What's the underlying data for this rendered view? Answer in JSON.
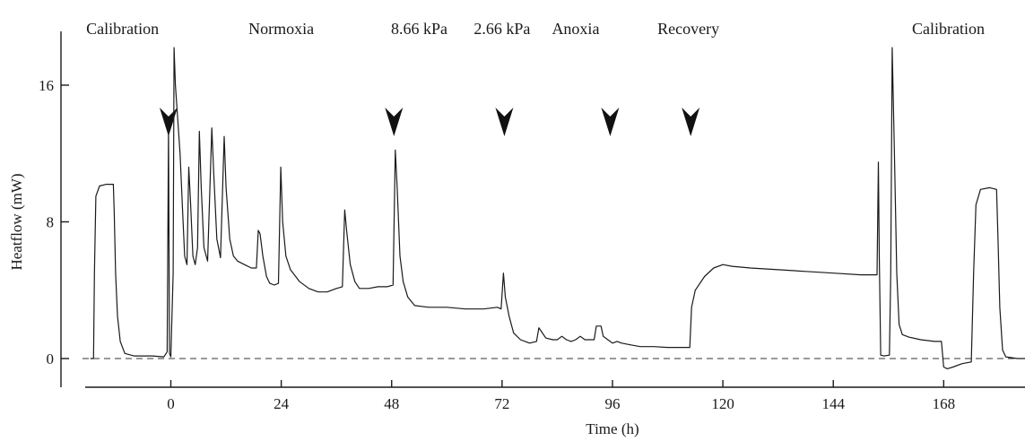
{
  "chart_data": {
    "type": "line",
    "title": "",
    "xlabel": "Time (h)",
    "ylabel": "Heatflow (mW)",
    "xlim": [
      -21,
      181
    ],
    "ylim": [
      -0.8,
      19.5
    ],
    "x_ticks": [
      0,
      24,
      48,
      72,
      96,
      120,
      144,
      168
    ],
    "y_ticks": [
      0,
      8,
      16
    ],
    "baseline_y": 0,
    "grid": false,
    "legend": "none",
    "phase_labels": [
      {
        "text": "Calibration",
        "x": -10.5
      },
      {
        "text": "Normoxia",
        "x": 24
      },
      {
        "text": "8.66 kPa",
        "x": 54
      },
      {
        "text": "2.66 kPa",
        "x": 72
      },
      {
        "text": "Anoxia",
        "x": 88
      },
      {
        "text": "Recovery",
        "x": 112.5
      },
      {
        "text": "Calibration",
        "x": 169
      }
    ],
    "arrow_markers_x": [
      -0.5,
      48.5,
      72.5,
      95.5,
      113
    ],
    "series": [
      {
        "values": [
          [
            -17.5,
            0
          ],
          [
            -16.8,
            0
          ],
          [
            -16.6,
            5
          ],
          [
            -16.3,
            9.5
          ],
          [
            -15.5,
            10.1
          ],
          [
            -14,
            10.2
          ],
          [
            -12.5,
            10.2
          ],
          [
            -12.3,
            8.5
          ],
          [
            -12,
            5
          ],
          [
            -11.6,
            2.5
          ],
          [
            -11,
            1
          ],
          [
            -10,
            0.3
          ],
          [
            -8,
            0.15
          ],
          [
            -4,
            0.15
          ],
          [
            -1.5,
            0.1
          ],
          [
            -0.8,
            0.4
          ],
          [
            -0.5,
            13.5
          ],
          [
            -0.3,
            0.3
          ],
          [
            0,
            0.1
          ],
          [
            0.5,
            5
          ],
          [
            0.7,
            18.2
          ],
          [
            1,
            16
          ],
          [
            1.5,
            14
          ],
          [
            2,
            12
          ],
          [
            2.5,
            9
          ],
          [
            3,
            6
          ],
          [
            3.5,
            5.5
          ],
          [
            3.9,
            11.2
          ],
          [
            4.3,
            9
          ],
          [
            4.8,
            6
          ],
          [
            5.3,
            5.5
          ],
          [
            5.8,
            6.5
          ],
          [
            6.2,
            13.3
          ],
          [
            6.6,
            10
          ],
          [
            7.2,
            6.5
          ],
          [
            8,
            5.7
          ],
          [
            8.9,
            13.5
          ],
          [
            9.3,
            11
          ],
          [
            10,
            7
          ],
          [
            10.8,
            5.9
          ],
          [
            11.6,
            13
          ],
          [
            12,
            10
          ],
          [
            12.8,
            7
          ],
          [
            13.6,
            6
          ],
          [
            14.5,
            5.7
          ],
          [
            16,
            5.5
          ],
          [
            17.5,
            5.3
          ],
          [
            18.6,
            5.3
          ],
          [
            19,
            7.5
          ],
          [
            19.4,
            7.3
          ],
          [
            20,
            6
          ],
          [
            20.8,
            4.8
          ],
          [
            21.5,
            4.4
          ],
          [
            22.5,
            4.3
          ],
          [
            23.4,
            4.4
          ],
          [
            23.9,
            11.2
          ],
          [
            24.3,
            8
          ],
          [
            25,
            6
          ],
          [
            26,
            5.2
          ],
          [
            28,
            4.5
          ],
          [
            30,
            4.1
          ],
          [
            32,
            3.9
          ],
          [
            34,
            3.9
          ],
          [
            36,
            4.1
          ],
          [
            37.3,
            4.2
          ],
          [
            37.8,
            8.7
          ],
          [
            38.2,
            7.5
          ],
          [
            39,
            5.5
          ],
          [
            40,
            4.5
          ],
          [
            41,
            4.1
          ],
          [
            43,
            4.1
          ],
          [
            45,
            4.2
          ],
          [
            47,
            4.2
          ],
          [
            48.3,
            4.3
          ],
          [
            48.8,
            12.2
          ],
          [
            49.2,
            10
          ],
          [
            49.8,
            6
          ],
          [
            50.5,
            4.5
          ],
          [
            51.5,
            3.6
          ],
          [
            53,
            3.1
          ],
          [
            56,
            3
          ],
          [
            60,
            3
          ],
          [
            64,
            2.9
          ],
          [
            68,
            2.9
          ],
          [
            71,
            3
          ],
          [
            71.8,
            2.9
          ],
          [
            72.3,
            5
          ],
          [
            72.7,
            3.6
          ],
          [
            73.5,
            2.5
          ],
          [
            74.5,
            1.5
          ],
          [
            76,
            1.1
          ],
          [
            78,
            0.9
          ],
          [
            79.5,
            1
          ],
          [
            80,
            1.8
          ],
          [
            80.5,
            1.6
          ],
          [
            81.5,
            1.2
          ],
          [
            83,
            1.1
          ],
          [
            84,
            1.1
          ],
          [
            85,
            1.3
          ],
          [
            86,
            1.1
          ],
          [
            87,
            1
          ],
          [
            88,
            1.1
          ],
          [
            89,
            1.3
          ],
          [
            90,
            1.1
          ],
          [
            92,
            1.1
          ],
          [
            92.5,
            1.9
          ],
          [
            93.5,
            1.9
          ],
          [
            94,
            1.3
          ],
          [
            95,
            1.1
          ],
          [
            96,
            0.9
          ],
          [
            97,
            1
          ],
          [
            98,
            0.9
          ],
          [
            100,
            0.8
          ],
          [
            102,
            0.7
          ],
          [
            105,
            0.7
          ],
          [
            108,
            0.65
          ],
          [
            111,
            0.65
          ],
          [
            112.8,
            0.65
          ],
          [
            113.2,
            3
          ],
          [
            114,
            4
          ],
          [
            116,
            4.8
          ],
          [
            118,
            5.3
          ],
          [
            120,
            5.5
          ],
          [
            122,
            5.4
          ],
          [
            126,
            5.3
          ],
          [
            132,
            5.2
          ],
          [
            138,
            5.1
          ],
          [
            144,
            5
          ],
          [
            150,
            4.9
          ],
          [
            153.5,
            4.9
          ],
          [
            153.8,
            11.5
          ],
          [
            154,
            6
          ],
          [
            154.3,
            0.2
          ],
          [
            155,
            0.15
          ],
          [
            156.2,
            0.2
          ],
          [
            156.5,
            5
          ],
          [
            156.8,
            18.2
          ],
          [
            157.3,
            12
          ],
          [
            157.8,
            5
          ],
          [
            158.3,
            2
          ],
          [
            159,
            1.4
          ],
          [
            160.5,
            1.25
          ],
          [
            163,
            1.1
          ],
          [
            166,
            1
          ],
          [
            167.5,
            1
          ],
          [
            168,
            -0.5
          ],
          [
            168.8,
            -0.6
          ],
          [
            170,
            -0.5
          ],
          [
            172,
            -0.3
          ],
          [
            174,
            -0.2
          ],
          [
            174.5,
            5
          ],
          [
            175,
            9
          ],
          [
            176,
            9.9
          ],
          [
            178,
            10
          ],
          [
            179.5,
            9.9
          ],
          [
            179.8,
            7
          ],
          [
            180.2,
            3
          ],
          [
            180.8,
            0.5
          ],
          [
            181.5,
            0.1
          ],
          [
            184,
            0
          ],
          [
            187,
            0
          ]
        ]
      }
    ]
  }
}
